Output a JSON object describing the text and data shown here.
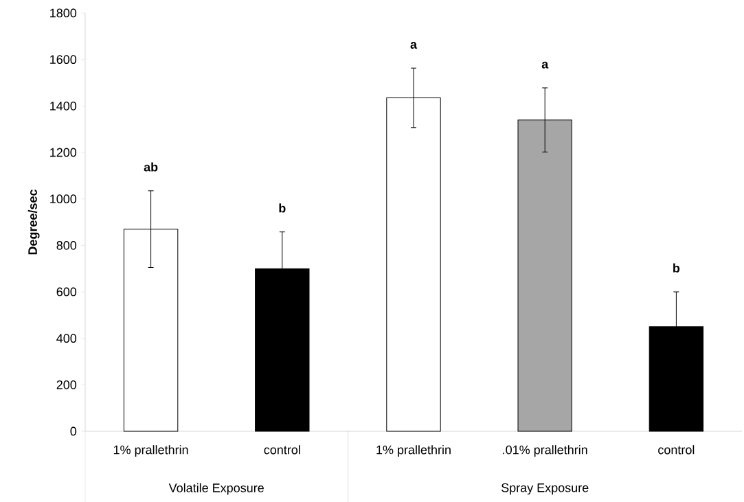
{
  "chart_data": {
    "type": "bar",
    "ylabel": "Degree/sec",
    "categories": [
      "1% prallethrin",
      "control",
      "1% prallethrin",
      ".01% prallethrin",
      "control"
    ],
    "values": [
      870,
      700,
      1435,
      1340,
      450
    ],
    "errors": [
      165,
      158,
      128,
      138,
      150
    ],
    "colors": [
      "#ffffff",
      "#000000",
      "#ffffff",
      "#a6a6a6",
      "#000000"
    ],
    "ylim": [
      0,
      1800
    ],
    "yticks": [
      0,
      200,
      400,
      600,
      800,
      1000,
      1200,
      1400,
      1600,
      1800
    ],
    "annotations": [
      "ab",
      "b",
      "a",
      "a",
      "b",
      "Volatile Exposure",
      "Spray Exposure"
    ]
  }
}
